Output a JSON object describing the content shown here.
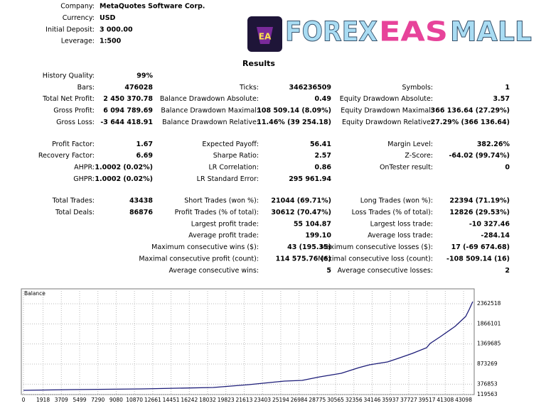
{
  "header": {
    "fields": [
      {
        "label": "Company:",
        "value": "MetaQuotes Software Corp."
      },
      {
        "label": "Currency:",
        "value": "USD"
      },
      {
        "label": "Initial Deposit:",
        "value": "3 000.00"
      },
      {
        "label": "Leverage:",
        "value": "1:500"
      }
    ]
  },
  "logo": {
    "badge": "EA",
    "parts": [
      "FOREX",
      "EAS",
      "MALL"
    ]
  },
  "results": {
    "title": "Results",
    "sections": [
      [
        [
          {
            "label": "History Quality:",
            "value": "99%"
          },
          null,
          null
        ],
        [
          {
            "label": "Bars:",
            "value": "476028"
          },
          {
            "label": "Ticks:",
            "value": "346236509"
          },
          {
            "label": "Symbols:",
            "value": "1"
          }
        ],
        [
          {
            "label": "Total Net Profit:",
            "value": "2 450 370.78"
          },
          {
            "label": "Balance Drawdown Absolute:",
            "value": "0.49"
          },
          {
            "label": "Equity Drawdown Absolute:",
            "value": "3.57"
          }
        ],
        [
          {
            "label": "Gross Profit:",
            "value": "6 094 789.69"
          },
          {
            "label": "Balance Drawdown Maximal:",
            "value": "108 509.14 (8.09%)"
          },
          {
            "label": "Equity Drawdown Maximal:",
            "value": "366 136.64 (27.29%)"
          }
        ],
        [
          {
            "label": "Gross Loss:",
            "value": "-3 644 418.91"
          },
          {
            "label": "Balance Drawdown Relative:",
            "value": "11.46% (39 254.18)"
          },
          {
            "label": "Equity Drawdown Relative:",
            "value": "27.29% (366 136.64)"
          }
        ]
      ],
      [
        [
          {
            "label": "Profit Factor:",
            "value": "1.67"
          },
          {
            "label": "Expected Payoff:",
            "value": "56.41"
          },
          {
            "label": "Margin Level:",
            "value": "382.26%"
          }
        ],
        [
          {
            "label": "Recovery Factor:",
            "value": "6.69"
          },
          {
            "label": "Sharpe Ratio:",
            "value": "2.57"
          },
          {
            "label": "Z-Score:",
            "value": "-64.02 (99.74%)"
          }
        ],
        [
          {
            "label": "AHPR:",
            "value": "1.0002 (0.02%)"
          },
          {
            "label": "LR Correlation:",
            "value": "0.86"
          },
          {
            "label": "OnTester result:",
            "value": "0"
          }
        ],
        [
          {
            "label": "GHPR:",
            "value": "1.0002 (0.02%)"
          },
          {
            "label": "LR Standard Error:",
            "value": "295 961.94"
          },
          null
        ]
      ],
      [
        [
          {
            "label": "Total Trades:",
            "value": "43438"
          },
          {
            "label": "Short Trades (won %):",
            "value": "21044 (69.71%)"
          },
          {
            "label": "Long Trades (won %):",
            "value": "22394 (71.19%)"
          }
        ],
        [
          {
            "label": "Total Deals:",
            "value": "86876"
          },
          {
            "label": "Profit Trades (% of total):",
            "value": "30612 (70.47%)"
          },
          {
            "label": "Loss Trades (% of total):",
            "value": "12826 (29.53%)"
          }
        ],
        [
          null,
          {
            "label": "Largest profit trade:",
            "value": "55 104.87"
          },
          {
            "label": "Largest loss trade:",
            "value": "-10 327.46"
          }
        ],
        [
          null,
          {
            "label": "Average profit trade:",
            "value": "199.10"
          },
          {
            "label": "Average loss trade:",
            "value": "-284.14"
          }
        ],
        [
          null,
          {
            "label": "Maximum consecutive wins ($):",
            "value": "43 (195.35)"
          },
          {
            "label": "Maximum consecutive losses ($):",
            "value": "17 (-69 674.68)"
          }
        ],
        [
          null,
          {
            "label": "Maximal consecutive profit (count):",
            "value": "114 575.76 (6)"
          },
          {
            "label": "Maximal consecutive loss (count):",
            "value": "-108 509.14 (16)"
          }
        ],
        [
          null,
          {
            "label": "Average consecutive wins:",
            "value": "5"
          },
          {
            "label": "Average consecutive losses:",
            "value": "2"
          }
        ]
      ]
    ]
  },
  "chart_data": {
    "type": "line",
    "x": [
      0,
      4664,
      11627,
      18589,
      22070,
      24158,
      25551,
      27291,
      29032,
      31120,
      32861,
      33905,
      35646,
      36690,
      38082,
      39475,
      39823,
      40867,
      42259,
      43303,
      43651,
      44000
    ],
    "series": [
      {
        "name": "Balance",
        "color": "#1c1c78",
        "values": [
          224700,
          242200,
          259700,
          294800,
          364900,
          417500,
          452500,
          470000,
          557600,
          645300,
          785500,
          855500,
          925600,
          1013300,
          1136000,
          1276100,
          1381700,
          1556500,
          1801800,
          2047100,
          2222300,
          2415100
        ]
      }
    ],
    "xlim": [
      0,
      44000
    ],
    "xticks": [
      0,
      1918,
      3709,
      5499,
      7290,
      9080,
      10870,
      12661,
      14451,
      16242,
      18032,
      19823,
      21613,
      23403,
      25194,
      26984,
      28775,
      30565,
      32356,
      34146,
      35937,
      37727,
      39517,
      41308,
      43098
    ],
    "ylim": [
      119563,
      2730500
    ],
    "yticks": [
      119563,
      376853,
      873269,
      1369685,
      1866101,
      2362518
    ],
    "grid": true
  }
}
